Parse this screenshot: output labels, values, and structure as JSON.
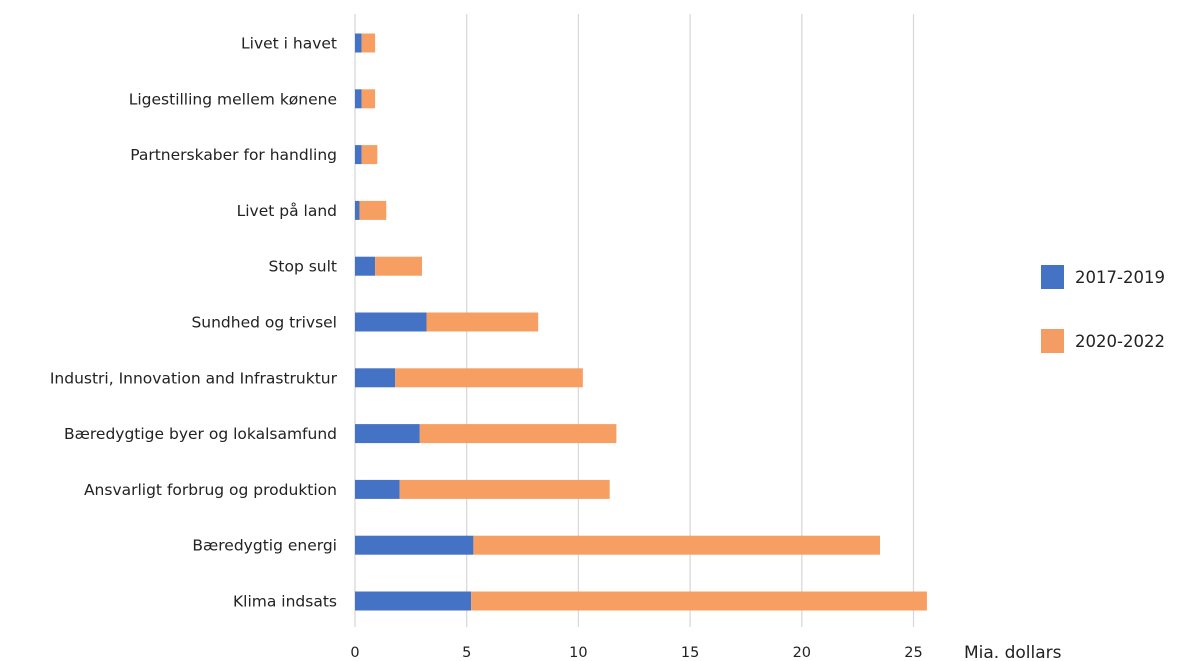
{
  "chart_data": {
    "type": "bar",
    "orientation": "horizontal",
    "stacked": true,
    "categories": [
      "Livet i havet",
      "Ligestilling mellem kønene",
      "Partnerskaber for handling",
      "Livet på land",
      "Stop sult",
      "Sundhed og trivsel",
      "Industri, Innovation and Infrastruktur",
      "Bæredygtige byer og lokalsamfund",
      "Ansvarligt forbrug og produktion",
      "Bæredygtig energi",
      "Klima indsats"
    ],
    "series": [
      {
        "name": "2017-2019",
        "color": "#4472C4",
        "values": [
          0.3,
          0.3,
          0.3,
          0.2,
          0.9,
          3.2,
          1.8,
          2.9,
          2.0,
          5.3,
          5.2
        ]
      },
      {
        "name": "2020-2022",
        "color": "#F79F63",
        "values": [
          0.6,
          0.6,
          0.7,
          1.2,
          2.1,
          5.0,
          8.4,
          8.8,
          9.4,
          18.2,
          20.4
        ]
      }
    ],
    "x_ticks": [
      0,
      5,
      10,
      15,
      20,
      25
    ],
    "xlim": [
      0,
      26
    ],
    "xlabel": "Mia. dollars",
    "grid": "vertical",
    "legend_position": "right"
  }
}
